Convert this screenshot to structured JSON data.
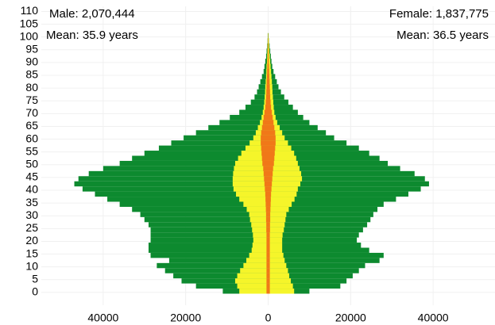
{
  "chart_data": {
    "type": "pyramid",
    "annotations": [
      "Male: 2,070,444",
      "Mean: 35.9 years",
      "Female: 1,837,775",
      "Mean: 36.5 years"
    ],
    "y": [
      0,
      2,
      4,
      6,
      8,
      10,
      12,
      14,
      16,
      18,
      20,
      22,
      24,
      26,
      28,
      30,
      32,
      34,
      36,
      38,
      40,
      42,
      44,
      46,
      48,
      50,
      52,
      54,
      56,
      58,
      60,
      62,
      64,
      66,
      68,
      70,
      72,
      74,
      76,
      78,
      80,
      82,
      84,
      86,
      88,
      90,
      92,
      94,
      96,
      98,
      100
    ],
    "series": [
      {
        "color": "#0d8a2f",
        "values": [
          -11000,
          -17500,
          -21000,
          -23000,
          -25000,
          -27000,
          -24000,
          -28500,
          -29000,
          -29000,
          -28500,
          -28500,
          -28500,
          -29000,
          -30000,
          -31000,
          -33000,
          -36000,
          -39000,
          -42000,
          -45000,
          -47000,
          -46000,
          -43500,
          -40000,
          -36000,
          -33000,
          -30000,
          -26500,
          -23500,
          -20500,
          -17500,
          -14500,
          -11800,
          -9300,
          -7000,
          -5500,
          -4200,
          -3300,
          -2700,
          -2300,
          -1900,
          -1500,
          -1100,
          -900,
          -700,
          -500,
          -380,
          -250,
          -150,
          -100
        ]
      },
      {
        "color": "#0d8a2f",
        "values": [
          10000,
          17500,
          19000,
          20500,
          22000,
          23500,
          27000,
          28000,
          24500,
          22500,
          21500,
          22000,
          23000,
          24000,
          24800,
          25500,
          26500,
          28000,
          31000,
          34000,
          37000,
          39000,
          38000,
          35500,
          32000,
          29000,
          27000,
          24500,
          22000,
          19000,
          16000,
          14000,
          12000,
          10000,
          8500,
          7200,
          6000,
          4900,
          3900,
          3100,
          2500,
          2100,
          1700,
          1300,
          1000,
          800,
          650,
          500,
          350,
          200,
          100
        ]
      },
      {
        "color": "#f5f52a",
        "values": [
          -7000,
          -7500,
          -8000,
          -7500,
          -6800,
          -6000,
          -5300,
          -4600,
          -4000,
          -3800,
          -3600,
          -3700,
          -3900,
          -4100,
          -4400,
          -4600,
          -5200,
          -6000,
          -7000,
          -7800,
          -8400,
          -8600,
          -8600,
          -8500,
          -8300,
          -8000,
          -7300,
          -6500,
          -5500,
          -4500,
          -3600,
          -3000,
          -2500,
          -2000,
          -1600,
          -1300,
          -1100,
          -950,
          -850,
          -750,
          -700,
          -600,
          -500,
          -450,
          -400,
          -300,
          -250,
          -200,
          -150,
          -100,
          -50
        ]
      },
      {
        "color": "#f5f52a",
        "values": [
          6300,
          6000,
          5500,
          5100,
          4800,
          4400,
          4000,
          3700,
          3400,
          3400,
          3400,
          3500,
          3800,
          4000,
          4200,
          4400,
          5000,
          5700,
          6400,
          6900,
          7200,
          7800,
          8200,
          8000,
          7600,
          7200,
          6800,
          6300,
          5600,
          4800,
          4000,
          3400,
          2800,
          2200,
          1800,
          1500,
          1350,
          1250,
          1150,
          1050,
          1000,
          900,
          800,
          700,
          600,
          500,
          400,
          300,
          200,
          150,
          50
        ]
      },
      {
        "color": "#f07818",
        "values": [
          -400,
          -400,
          -400,
          -400,
          -400,
          -400,
          -400,
          -400,
          -400,
          -400,
          -400,
          -400,
          -450,
          -450,
          -500,
          -500,
          -550,
          -600,
          -650,
          -700,
          -800,
          -900,
          -1000,
          -1100,
          -1200,
          -1400,
          -1500,
          -1600,
          -1700,
          -1800,
          -1800,
          -1700,
          -1500,
          -1300,
          -1100,
          -900,
          -700,
          -600,
          -500,
          -450,
          -400,
          -350,
          -300,
          -250,
          -200,
          -150,
          -100,
          -80,
          -60,
          -40,
          -20
        ]
      },
      {
        "color": "#f07818",
        "values": [
          400,
          400,
          400,
          400,
          400,
          400,
          400,
          400,
          400,
          400,
          400,
          400,
          450,
          450,
          500,
          500,
          550,
          600,
          650,
          700,
          800,
          900,
          1000,
          1100,
          1200,
          1400,
          1500,
          1600,
          1700,
          1800,
          1800,
          1700,
          1500,
          1300,
          1100,
          900,
          700,
          600,
          500,
          450,
          400,
          350,
          300,
          250,
          200,
          150,
          100,
          80,
          60,
          40,
          20
        ]
      }
    ],
    "xlim": [
      -55000,
      55000
    ],
    "xticks": [
      {
        "value": -40000,
        "label": "40000"
      },
      {
        "value": -20000,
        "label": "20000"
      },
      0,
      20000,
      40000
    ],
    "ylim": [
      -5,
      112
    ],
    "yticks": [
      0,
      5,
      10,
      15,
      20,
      25,
      30,
      35,
      40,
      45,
      50,
      55,
      60,
      65,
      70,
      75,
      80,
      85,
      90,
      95,
      100,
      105,
      110
    ],
    "grid": true
  }
}
